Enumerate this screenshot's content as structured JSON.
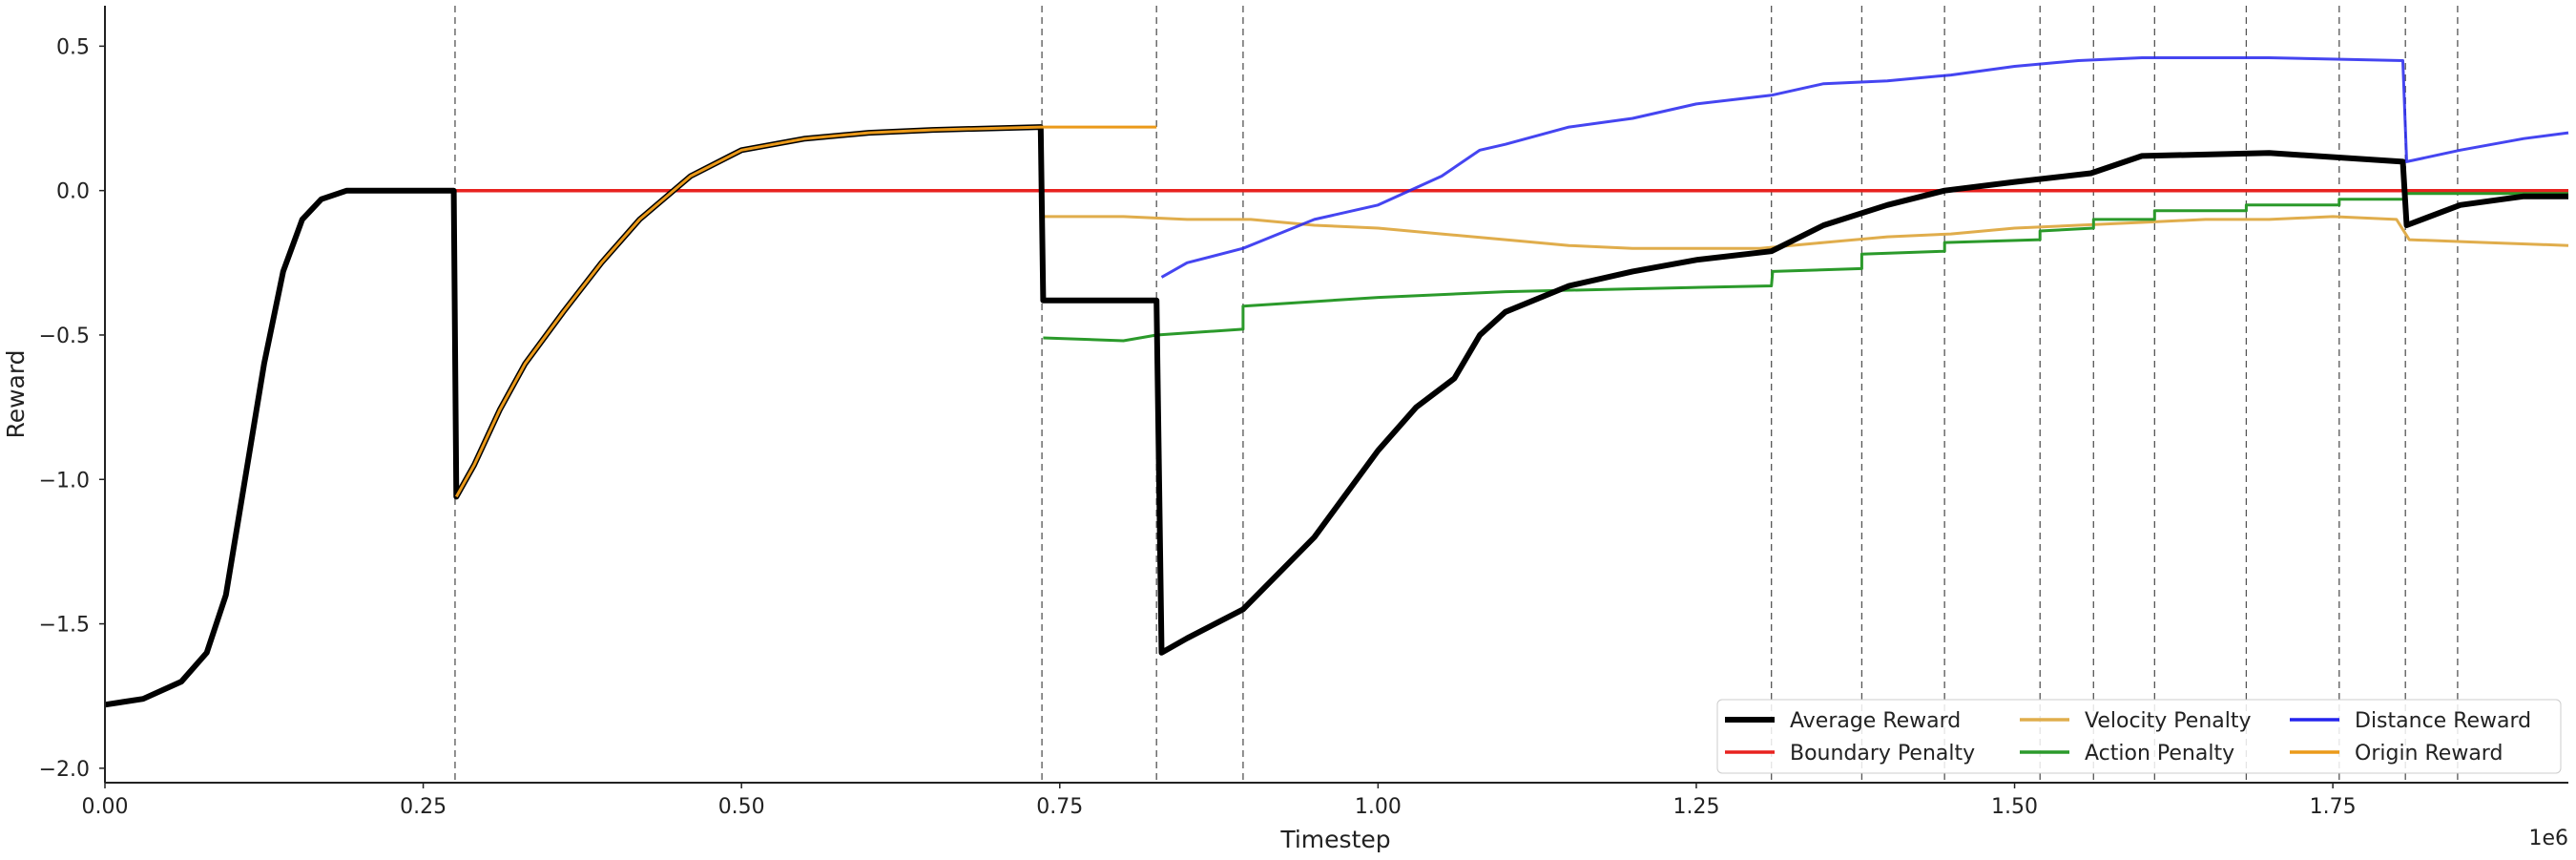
{
  "chart_data": {
    "type": "line",
    "title": "",
    "xlabel": "Timestep",
    "ylabel": "Reward",
    "x_offset_label": "1e6",
    "xlim": [
      0,
      1.935
    ],
    "ylim": [
      -2.05,
      0.64
    ],
    "x_ticks": [
      0.0,
      0.25,
      0.5,
      0.75,
      1.0,
      1.25,
      1.5,
      1.75
    ],
    "x_tick_labels": [
      "0.00",
      "0.25",
      "0.50",
      "0.75",
      "1.00",
      "1.25",
      "1.50",
      "1.75"
    ],
    "y_ticks": [
      -2.0,
      -1.5,
      -1.0,
      -0.5,
      0.0,
      0.5
    ],
    "y_tick_labels": [
      "−2.0",
      "−1.5",
      "−1.0",
      "−0.5",
      "0.0",
      "0.5"
    ],
    "grid": false,
    "stage_boundaries": [
      0.275,
      0.736,
      0.826,
      0.894,
      1.309,
      1.38,
      1.445,
      1.52,
      1.562,
      1.61,
      1.682,
      1.755,
      1.807,
      1.848
    ],
    "legend": {
      "placement": "lower-right",
      "columns": 3
    },
    "series": [
      {
        "name": "Average Reward",
        "color": "#000000",
        "points": [
          [
            0,
            -1.78
          ],
          [
            0.03,
            -1.76
          ],
          [
            0.06,
            -1.7
          ],
          [
            0.08,
            -1.6
          ],
          [
            0.095,
            -1.4
          ],
          [
            0.11,
            -1.0
          ],
          [
            0.125,
            -0.6
          ],
          [
            0.14,
            -0.28
          ],
          [
            0.155,
            -0.1
          ],
          [
            0.17,
            -0.03
          ],
          [
            0.19,
            0.0
          ],
          [
            0.274,
            0.0
          ],
          [
            0.276,
            -1.06
          ],
          [
            0.29,
            -0.95
          ],
          [
            0.31,
            -0.76
          ],
          [
            0.33,
            -0.6
          ],
          [
            0.36,
            -0.42
          ],
          [
            0.39,
            -0.25
          ],
          [
            0.42,
            -0.1
          ],
          [
            0.46,
            0.05
          ],
          [
            0.5,
            0.14
          ],
          [
            0.55,
            0.18
          ],
          [
            0.6,
            0.2
          ],
          [
            0.65,
            0.21
          ],
          [
            0.735,
            0.22
          ],
          [
            0.737,
            -0.38
          ],
          [
            0.826,
            -0.38
          ],
          [
            0.83,
            -1.6
          ],
          [
            0.85,
            -1.55
          ],
          [
            0.894,
            -1.45
          ],
          [
            0.95,
            -1.2
          ],
          [
            1.0,
            -0.9
          ],
          [
            1.03,
            -0.75
          ],
          [
            1.06,
            -0.65
          ],
          [
            1.08,
            -0.5
          ],
          [
            1.1,
            -0.42
          ],
          [
            1.15,
            -0.33
          ],
          [
            1.2,
            -0.28
          ],
          [
            1.25,
            -0.24
          ],
          [
            1.309,
            -0.21
          ],
          [
            1.35,
            -0.12
          ],
          [
            1.4,
            -0.05
          ],
          [
            1.445,
            0.0
          ],
          [
            1.5,
            0.03
          ],
          [
            1.56,
            0.06
          ],
          [
            1.6,
            0.12
          ],
          [
            1.7,
            0.13
          ],
          [
            1.805,
            0.1
          ],
          [
            1.808,
            -0.12
          ],
          [
            1.85,
            -0.05
          ],
          [
            1.9,
            -0.02
          ],
          [
            1.935,
            -0.02
          ]
        ]
      },
      {
        "name": "Boundary Penalty",
        "color": "#e8221f",
        "points": [
          [
            0,
            -1.78
          ],
          [
            0.03,
            -1.76
          ],
          [
            0.06,
            -1.7
          ],
          [
            0.08,
            -1.6
          ],
          [
            0.095,
            -1.4
          ],
          [
            0.11,
            -1.0
          ],
          [
            0.125,
            -0.6
          ],
          [
            0.14,
            -0.28
          ],
          [
            0.155,
            -0.1
          ],
          [
            0.17,
            -0.03
          ],
          [
            0.19,
            0.0
          ],
          [
            0.274,
            0.0
          ],
          [
            1.935,
            0.0
          ]
        ]
      },
      {
        "name": "Velocity Penalty",
        "color": "#e0ad4c",
        "points": [
          [
            0.737,
            -0.09
          ],
          [
            0.8,
            -0.09
          ],
          [
            0.85,
            -0.1
          ],
          [
            0.9,
            -0.1
          ],
          [
            0.95,
            -0.12
          ],
          [
            1.0,
            -0.13
          ],
          [
            1.05,
            -0.15
          ],
          [
            1.1,
            -0.17
          ],
          [
            1.15,
            -0.19
          ],
          [
            1.2,
            -0.2
          ],
          [
            1.25,
            -0.2
          ],
          [
            1.3,
            -0.2
          ],
          [
            1.35,
            -0.18
          ],
          [
            1.4,
            -0.16
          ],
          [
            1.45,
            -0.15
          ],
          [
            1.5,
            -0.13
          ],
          [
            1.55,
            -0.12
          ],
          [
            1.6,
            -0.11
          ],
          [
            1.65,
            -0.1
          ],
          [
            1.7,
            -0.1
          ],
          [
            1.75,
            -0.09
          ],
          [
            1.8,
            -0.1
          ],
          [
            1.81,
            -0.17
          ],
          [
            1.87,
            -0.18
          ],
          [
            1.935,
            -0.19
          ]
        ]
      },
      {
        "name": "Action Penalty",
        "color": "#2b9a2b",
        "points": [
          [
            0.737,
            -0.51
          ],
          [
            0.8,
            -0.52
          ],
          [
            0.826,
            -0.5
          ],
          [
            0.894,
            -0.48
          ],
          [
            0.894,
            -0.4
          ],
          [
            1.0,
            -0.37
          ],
          [
            1.1,
            -0.35
          ],
          [
            1.2,
            -0.34
          ],
          [
            1.309,
            -0.33
          ],
          [
            1.31,
            -0.28
          ],
          [
            1.38,
            -0.27
          ],
          [
            1.38,
            -0.22
          ],
          [
            1.445,
            -0.21
          ],
          [
            1.445,
            -0.18
          ],
          [
            1.52,
            -0.17
          ],
          [
            1.52,
            -0.14
          ],
          [
            1.562,
            -0.13
          ],
          [
            1.562,
            -0.1
          ],
          [
            1.61,
            -0.1
          ],
          [
            1.61,
            -0.07
          ],
          [
            1.682,
            -0.07
          ],
          [
            1.682,
            -0.05
          ],
          [
            1.755,
            -0.05
          ],
          [
            1.755,
            -0.03
          ],
          [
            1.807,
            -0.03
          ],
          [
            1.807,
            -0.01
          ],
          [
            1.935,
            -0.01
          ]
        ]
      },
      {
        "name": "Distance Reward",
        "color": "#2424ee",
        "points": [
          [
            0.83,
            -0.3
          ],
          [
            0.85,
            -0.25
          ],
          [
            0.894,
            -0.2
          ],
          [
            0.95,
            -0.1
          ],
          [
            1.0,
            -0.05
          ],
          [
            1.05,
            0.05
          ],
          [
            1.08,
            0.14
          ],
          [
            1.1,
            0.16
          ],
          [
            1.15,
            0.22
          ],
          [
            1.2,
            0.25
          ],
          [
            1.25,
            0.3
          ],
          [
            1.309,
            0.33
          ],
          [
            1.35,
            0.37
          ],
          [
            1.4,
            0.38
          ],
          [
            1.45,
            0.4
          ],
          [
            1.5,
            0.43
          ],
          [
            1.55,
            0.45
          ],
          [
            1.6,
            0.46
          ],
          [
            1.7,
            0.46
          ],
          [
            1.805,
            0.45
          ],
          [
            1.808,
            0.1
          ],
          [
            1.85,
            0.14
          ],
          [
            1.9,
            0.18
          ],
          [
            1.935,
            0.2
          ]
        ]
      },
      {
        "name": "Origin Reward",
        "color": "#eb9a1a",
        "points": [
          [
            0.276,
            -1.06
          ],
          [
            0.29,
            -0.95
          ],
          [
            0.31,
            -0.76
          ],
          [
            0.33,
            -0.6
          ],
          [
            0.36,
            -0.42
          ],
          [
            0.39,
            -0.25
          ],
          [
            0.42,
            -0.1
          ],
          [
            0.46,
            0.05
          ],
          [
            0.5,
            0.14
          ],
          [
            0.55,
            0.18
          ],
          [
            0.6,
            0.2
          ],
          [
            0.65,
            0.21
          ],
          [
            0.735,
            0.22
          ],
          [
            0.826,
            0.22
          ]
        ]
      }
    ]
  }
}
